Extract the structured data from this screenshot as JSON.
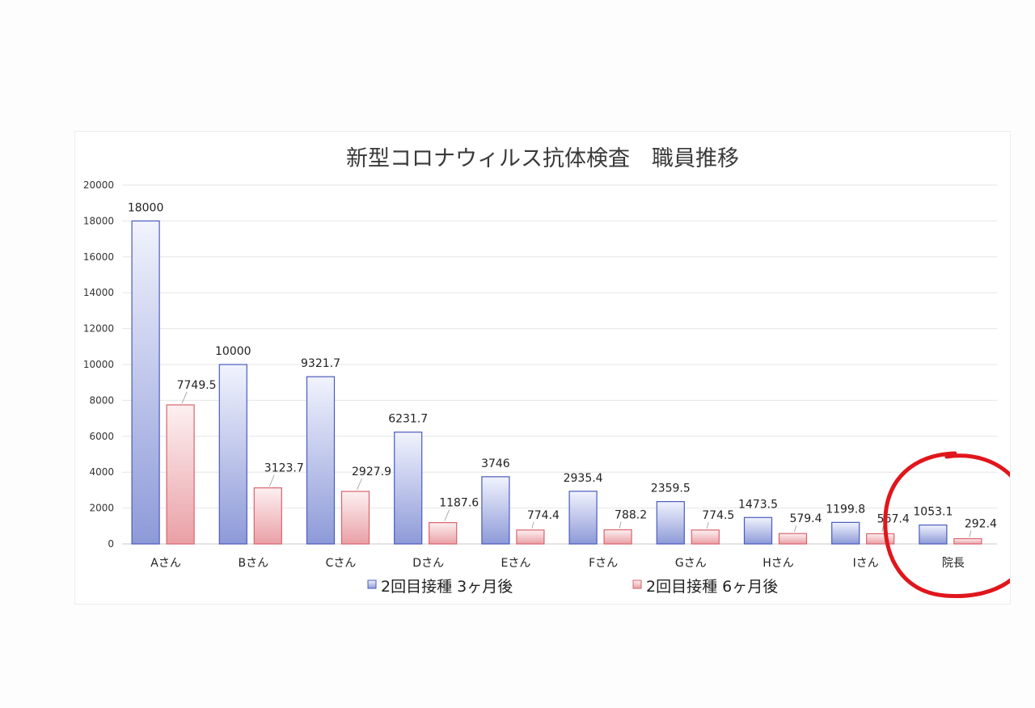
{
  "chart_data": {
    "type": "bar",
    "title": "新型コロナウィルス抗体検査　職員推移",
    "categories": [
      "Aさん",
      "Bさん",
      "Cさん",
      "Dさん",
      "Eさん",
      "Fさん",
      "Gさん",
      "Hさん",
      "Iさん",
      "院長"
    ],
    "series": [
      {
        "name": "2回目接種 3ヶ月後",
        "values": [
          18000,
          10000,
          9321.7,
          6231.7,
          3746,
          2935.4,
          2359.5,
          1473.5,
          1199.8,
          1053.1
        ],
        "labels": [
          "18000",
          "10000",
          "9321.7",
          "6231.7",
          "3746",
          "2935.4",
          "2359.5",
          "1473.5",
          "1199.8",
          "1053.1"
        ],
        "color": "#a9b4e6"
      },
      {
        "name": "2回目接種 6ヶ月後",
        "values": [
          7749.5,
          3123.7,
          2927.9,
          1187.6,
          774.4,
          788.2,
          774.5,
          579.4,
          567.4,
          292.4
        ],
        "labels": [
          "7749.5",
          "3123.7",
          "2927.9",
          "1187.6",
          "774.4",
          "788.2",
          "774.5",
          "579.4",
          "567.4",
          "292.4"
        ],
        "color": "#f0b2b6"
      }
    ],
    "ylim": [
      0,
      20000
    ],
    "yticks": [
      "0",
      "2000",
      "4000",
      "6000",
      "8000",
      "10000",
      "12000",
      "14000",
      "16000",
      "18000",
      "20000"
    ],
    "grid": true,
    "legend_position": "bottom",
    "annotation": {
      "type": "hand-drawn circle",
      "target": "院長",
      "color": "#e0161c"
    }
  }
}
